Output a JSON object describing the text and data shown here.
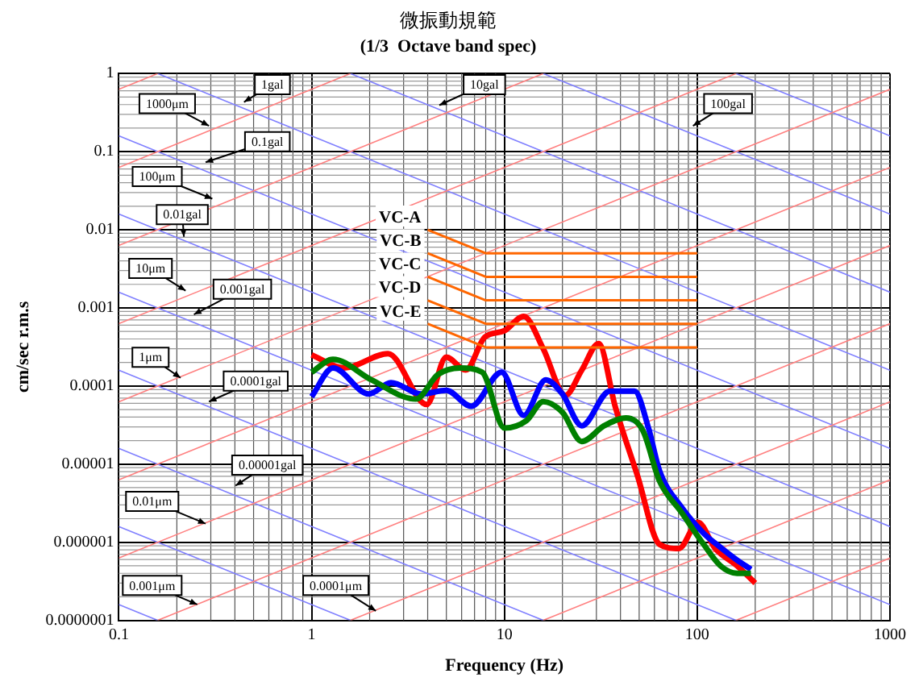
{
  "chart_data": {
    "type": "line",
    "title": "微振動規範",
    "subtitle": "(1/3  Octave band spec)",
    "xlabel": "Frequency (Hz)",
    "ylabel": "cm/sec r.m.s",
    "log": "xy",
    "grid": true,
    "legend": false,
    "marker": "none",
    "line_style": "solid",
    "xlim": [
      0.1,
      1000
    ],
    "xticks": [
      0.1,
      1,
      10,
      100,
      1000
    ],
    "ylim": [
      1e-07,
      1
    ],
    "yticks": [
      {
        "value": 1e-07,
        "label": "0.0000001"
      },
      {
        "value": 1e-06,
        "label": "0.000001"
      },
      {
        "value": 1e-05,
        "label": "0.00001"
      },
      {
        "value": 0.0001,
        "label": "0.0001"
      },
      {
        "value": 0.001,
        "label": "0.001"
      },
      {
        "value": 0.01,
        "label": "0.01"
      },
      {
        "value": 0.1,
        "label": "0.1"
      },
      {
        "value": 1,
        "label": "1"
      }
    ],
    "series": [
      {
        "name": "VC-A",
        "color": "#ff6600",
        "x": [
          4,
          8,
          100
        ],
        "values": [
          0.01,
          0.005,
          0.005
        ]
      },
      {
        "name": "VC-B",
        "color": "#ff6600",
        "x": [
          4,
          8,
          100
        ],
        "values": [
          0.005,
          0.0025,
          0.0025
        ]
      },
      {
        "name": "VC-C",
        "color": "#ff6600",
        "x": [
          4,
          8,
          100
        ],
        "values": [
          0.0025,
          0.00125,
          0.00125
        ]
      },
      {
        "name": "VC-D",
        "color": "#ff6600",
        "x": [
          4,
          8,
          100
        ],
        "values": [
          0.00125,
          0.000625,
          0.000625
        ]
      },
      {
        "name": "VC-E",
        "color": "#ff6600",
        "x": [
          4,
          8,
          100
        ],
        "values": [
          0.000625,
          0.000312,
          0.000312
        ]
      },
      {
        "color": "#008000",
        "x": [
          1,
          1.29,
          2.04,
          3.47,
          4.52,
          5.89,
          7.67,
          10,
          13,
          15.9,
          20,
          25.2,
          32.9,
          42.8,
          52.2,
          63.7,
          83,
          108,
          132,
          161,
          190
        ],
        "values": [
          0.00015,
          0.00022,
          0.00012,
          6.8e-05,
          0.00014,
          0.00017,
          0.00015,
          2.9e-05,
          3.6e-05,
          6.3e-05,
          4.6e-05,
          1.95e-05,
          3.1e-05,
          3.9e-05,
          2.7e-05,
          6.1e-06,
          2.4e-06,
          9.4e-07,
          5e-07,
          4e-07,
          4e-07
        ]
      },
      {
        "color": "#0000ff",
        "x": [
          1,
          1.29,
          1.98,
          2.58,
          3.71,
          4.99,
          6.73,
          9.67,
          12.6,
          16.4,
          20,
          25.2,
          35.2,
          47.3,
          55.9,
          63.7,
          83,
          108,
          132,
          161,
          190
        ],
        "values": [
          7.3e-05,
          0.00017,
          7.9e-05,
          0.00011,
          7.9e-05,
          8.8e-05,
          5.5e-05,
          0.00015,
          4.2e-05,
          0.00012,
          7.9e-05,
          3.1e-05,
          8.6e-05,
          8.6e-05,
          2.9e-05,
          8.3e-06,
          2.8e-06,
          1.3e-06,
          8.6e-07,
          5.9e-07,
          4.5e-07
        ]
      },
      {
        "color": "#ff0000",
        "x": [
          1,
          1.47,
          2.49,
          3.96,
          4.99,
          6.3,
          7.9,
          10,
          12.6,
          15.9,
          20.7,
          25.2,
          30.8,
          37.6,
          49,
          63.7,
          80.4,
          101,
          124,
          161,
          200
        ],
        "values": [
          0.00025,
          0.00017,
          0.00026,
          5.8e-05,
          0.000235,
          0.00016,
          0.00042,
          0.00051,
          0.00078,
          0.0003,
          7.6e-05,
          0.00016,
          0.00035,
          5.4e-05,
          7.1e-06,
          9.4e-07,
          8.3e-07,
          1.8e-06,
          8.3e-07,
          5e-07,
          3e-07
        ]
      },
      {
        "color": "#ff8080",
        "x": [
          0.1,
          0.159
        ],
        "values": [
          0.628,
          1
        ]
      },
      {
        "color": "#ff8080",
        "x": [
          0.1,
          1.59
        ],
        "values": [
          0.0628,
          1
        ]
      },
      {
        "color": "#ff8080",
        "x": [
          0.1,
          15.9
        ],
        "values": [
          0.00628,
          1
        ]
      },
      {
        "color": "#ff8080",
        "x": [
          0.1,
          159
        ],
        "values": [
          0.000628,
          1
        ]
      },
      {
        "color": "#ff8080",
        "x": [
          0.1,
          1000
        ],
        "values": [
          6.28e-05,
          0.628
        ]
      },
      {
        "color": "#ff8080",
        "x": [
          0.1,
          1000
        ],
        "values": [
          6.28e-06,
          0.0628
        ]
      },
      {
        "color": "#ff8080",
        "x": [
          0.1,
          1000
        ],
        "values": [
          6.28e-07,
          0.00628
        ]
      },
      {
        "color": "#ff8080",
        "x": [
          0.159,
          1000
        ],
        "values": [
          1e-07,
          0.000628
        ]
      },
      {
        "color": "#ff8080",
        "x": [
          1.59,
          1000
        ],
        "values": [
          1e-07,
          6.28e-05
        ]
      },
      {
        "color": "#ff8080",
        "x": [
          15.9,
          1000
        ],
        "values": [
          1e-07,
          6.28e-06
        ]
      },
      {
        "color": "#ff8080",
        "x": [
          159,
          1000
        ],
        "values": [
          1e-07,
          6.28e-07
        ]
      },
      {
        "color": "#8080ff",
        "x": [
          159,
          1000
        ],
        "values": [
          1,
          0.159
        ]
      },
      {
        "color": "#8080ff",
        "x": [
          15.9,
          1000
        ],
        "values": [
          1,
          0.0159
        ]
      },
      {
        "color": "#8080ff",
        "x": [
          1.59,
          1000
        ],
        "values": [
          1,
          0.00159
        ]
      },
      {
        "color": "#8080ff",
        "x": [
          0.159,
          1000
        ],
        "values": [
          1,
          0.000159
        ]
      },
      {
        "color": "#8080ff",
        "x": [
          0.1,
          1000
        ],
        "values": [
          0.159,
          1.59e-05
        ]
      },
      {
        "color": "#8080ff",
        "x": [
          0.1,
          1000
        ],
        "values": [
          0.0159,
          1.59e-06
        ]
      },
      {
        "color": "#8080ff",
        "x": [
          0.1,
          1000
        ],
        "values": [
          0.00159,
          1.59e-07
        ]
      },
      {
        "color": "#8080ff",
        "x": [
          0.1,
          159
        ],
        "values": [
          0.000159,
          1e-07
        ]
      },
      {
        "color": "#8080ff",
        "x": [
          0.1,
          15.9
        ],
        "values": [
          1.59e-05,
          1e-07
        ]
      },
      {
        "color": "#8080ff",
        "x": [
          0.1,
          1.59
        ],
        "values": [
          1.59e-06,
          1e-07
        ]
      },
      {
        "color": "#8080ff",
        "x": [
          0.1,
          0.159
        ],
        "values": [
          1.59e-07,
          1e-07
        ]
      }
    ],
    "annotations": [
      "1gal",
      "1000μm",
      "0.1gal",
      "100μm",
      "0.01gal",
      "10μm",
      "0.001gal",
      "10gal",
      "100gal",
      "1μm",
      "0.0001gal",
      "0.00001gal",
      "0.01μm",
      "0.001μm",
      "0.0001μm"
    ]
  }
}
